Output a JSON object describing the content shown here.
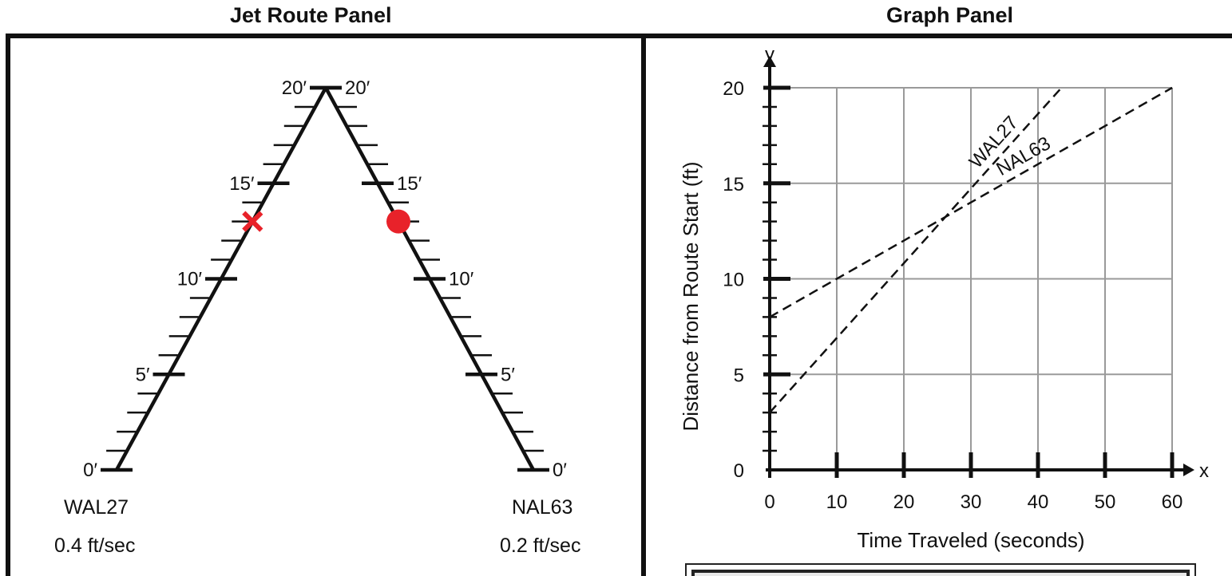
{
  "jet_route_panel": {
    "title": "Jet Route Panel",
    "left_route": {
      "name": "WAL27",
      "speed": "0.4 ft/sec",
      "tick_labels": [
        "0′",
        "5′",
        "10′",
        "15′",
        "20′"
      ],
      "marker": "x-mark",
      "marker_position_ft": 13,
      "marker_color": "#e8222a"
    },
    "right_route": {
      "name": "NAL63",
      "speed": "0.2 ft/sec",
      "tick_labels": [
        "0′",
        "5′",
        "10′",
        "15′",
        "20′"
      ],
      "marker": "dot",
      "marker_position_ft": 13,
      "marker_color": "#e8222a"
    },
    "route_length_ft": 20
  },
  "graph_panel": {
    "title": "Graph Panel",
    "chart_data": {
      "type": "line",
      "xlabel": "Time Traveled (seconds)",
      "ylabel": "Distance from Route Start (ft)",
      "x_axis_letter": "x",
      "y_axis_letter": "y",
      "xlim": [
        0,
        60
      ],
      "ylim": [
        0,
        20
      ],
      "x_ticks": [
        0,
        10,
        20,
        30,
        40,
        50,
        60
      ],
      "y_ticks": [
        0,
        5,
        10,
        15,
        20
      ],
      "grid": true,
      "series": [
        {
          "name": "WAL27",
          "x": [
            0,
            43.5
          ],
          "y": [
            3,
            20
          ],
          "style": "dashed"
        },
        {
          "name": "NAL63",
          "x": [
            0,
            60
          ],
          "y": [
            8,
            20
          ],
          "style": "dashed"
        }
      ]
    }
  }
}
